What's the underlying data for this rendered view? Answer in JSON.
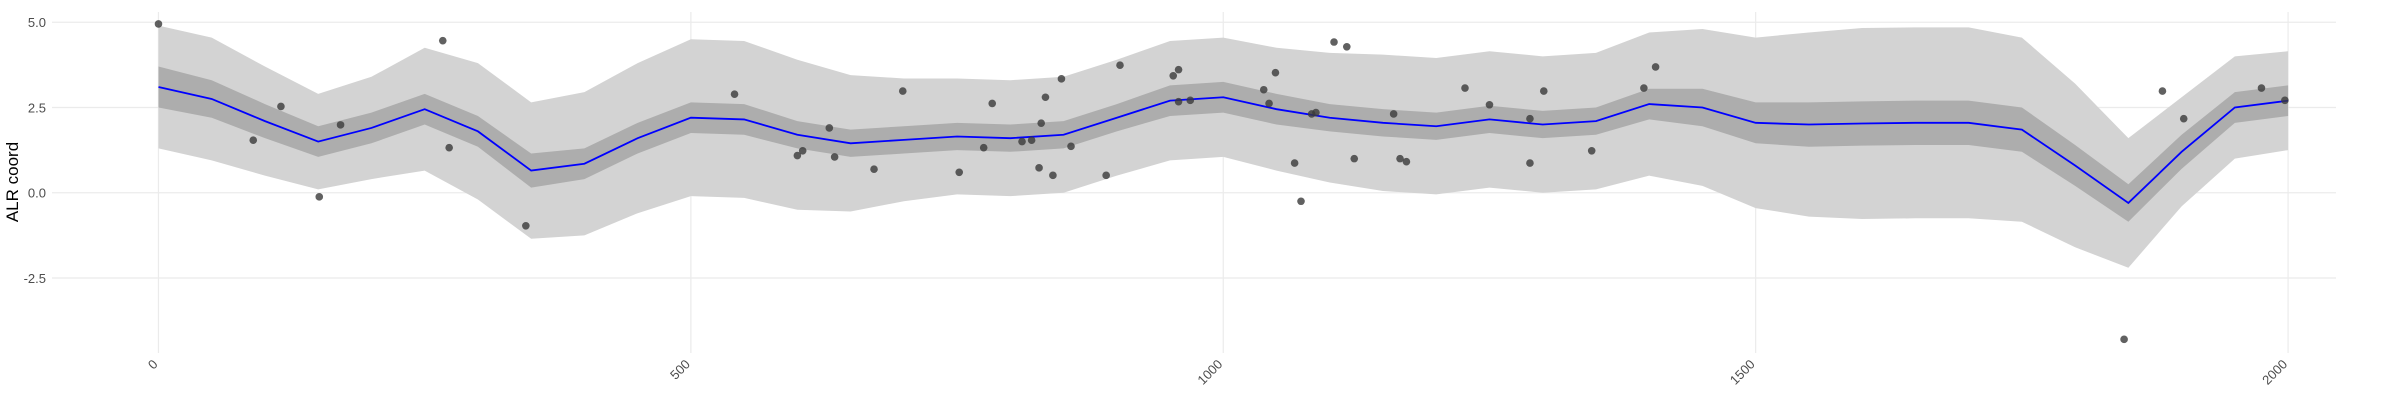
{
  "chart_data": {
    "type": "scatter",
    "y_label": "ALR coord",
    "xlim": [
      -100,
      2045
    ],
    "ylim": [
      -4.7,
      5.3
    ],
    "xticks": [
      0,
      500,
      1000,
      1500,
      2000
    ],
    "yticks": [
      -2.5,
      {
        "value": 0,
        "label": "0.0"
      },
      2.5,
      {
        "value": 5,
        "label": "5.0"
      }
    ],
    "grid": true,
    "point_color": "#3a3a3a",
    "x": [
      0,
      89,
      115,
      151,
      171,
      267,
      273,
      345,
      541,
      600,
      605,
      630,
      635,
      672,
      699,
      752,
      775,
      783,
      811,
      820,
      827,
      829,
      833,
      840,
      848,
      857,
      890,
      903,
      953,
      958,
      958,
      969,
      1038,
      1043,
      1049,
      1067,
      1073,
      1083,
      1087,
      1104,
      1116,
      1123,
      1160,
      1166,
      1172,
      1227,
      1250,
      1288,
      1288,
      1301,
      1346,
      1395,
      1406,
      1846,
      1882,
      1902,
      1975,
      1997
    ],
    "values": [
      4.95,
      1.54,
      2.53,
      -0.12,
      1.99,
      4.46,
      1.32,
      -0.97,
      2.89,
      1.09,
      1.23,
      1.9,
      1.05,
      0.69,
      2.98,
      0.6,
      1.32,
      2.62,
      1.5,
      1.54,
      0.73,
      2.04,
      2.8,
      0.51,
      3.34,
      1.36,
      0.51,
      3.74,
      3.43,
      3.61,
      2.67,
      2.71,
      3.02,
      2.62,
      3.52,
      0.87,
      -0.25,
      2.31,
      2.35,
      4.42,
      4.28,
      1.0,
      2.31,
      1.0,
      0.91,
      3.07,
      2.58,
      2.17,
      0.87,
      2.98,
      1.23,
      3.07,
      3.69,
      -4.3,
      2.98,
      2.17,
      3.07,
      2.71
    ],
    "fit": {
      "color": "#0000ff",
      "inner_color": "#adadad",
      "outer_color": "#d3d3d3",
      "x": [
        0,
        50,
        100,
        150,
        200,
        250,
        300,
        350,
        400,
        450,
        500,
        550,
        600,
        650,
        700,
        750,
        800,
        850,
        900,
        950,
        1000,
        1050,
        1100,
        1150,
        1200,
        1250,
        1300,
        1350,
        1400,
        1450,
        1500,
        1550,
        1600,
        1650,
        1700,
        1750,
        1800,
        1850,
        1900,
        1950,
        2000
      ],
      "values": [
        3.1,
        2.75,
        2.1,
        1.5,
        1.9,
        2.45,
        1.8,
        0.65,
        0.85,
        1.6,
        2.2,
        2.15,
        1.7,
        1.45,
        1.55,
        1.65,
        1.6,
        1.7,
        2.2,
        2.7,
        2.8,
        2.45,
        2.2,
        2.05,
        1.95,
        2.15,
        2.0,
        2.1,
        2.6,
        2.5,
        2.05,
        2.0,
        2.03,
        2.05,
        2.05,
        1.85,
        0.8,
        -0.3,
        1.2,
        2.5,
        2.7
      ],
      "inner_lower": [
        2.5,
        2.2,
        1.6,
        1.05,
        1.45,
        2.0,
        1.35,
        0.15,
        0.4,
        1.15,
        1.75,
        1.7,
        1.3,
        1.05,
        1.15,
        1.25,
        1.2,
        1.3,
        1.8,
        2.25,
        2.35,
        2.0,
        1.8,
        1.65,
        1.55,
        1.75,
        1.6,
        1.7,
        2.15,
        1.95,
        1.45,
        1.35,
        1.38,
        1.4,
        1.4,
        1.2,
        0.2,
        -0.85,
        0.7,
        2.05,
        2.25
      ],
      "inner_upper": [
        3.7,
        3.3,
        2.6,
        1.95,
        2.35,
        2.9,
        2.25,
        1.15,
        1.3,
        2.05,
        2.65,
        2.6,
        2.1,
        1.85,
        1.95,
        2.05,
        2.0,
        2.1,
        2.6,
        3.15,
        3.25,
        2.9,
        2.6,
        2.45,
        2.35,
        2.55,
        2.4,
        2.5,
        3.05,
        3.05,
        2.65,
        2.65,
        2.68,
        2.7,
        2.7,
        2.5,
        1.4,
        0.25,
        1.7,
        2.95,
        3.15
      ],
      "outer_lower": [
        1.3,
        0.95,
        0.5,
        0.1,
        0.4,
        0.65,
        -0.2,
        -1.35,
        -1.25,
        -0.6,
        -0.1,
        -0.15,
        -0.5,
        -0.55,
        -0.25,
        -0.05,
        -0.1,
        0.0,
        0.5,
        0.95,
        1.05,
        0.65,
        0.3,
        0.05,
        -0.05,
        0.15,
        0.0,
        0.1,
        0.5,
        0.2,
        -0.45,
        -0.7,
        -0.77,
        -0.75,
        -0.75,
        -0.85,
        -1.6,
        -2.2,
        -0.4,
        1.0,
        1.25
      ],
      "outer_upper": [
        4.9,
        4.55,
        3.7,
        2.9,
        3.4,
        4.25,
        3.8,
        2.65,
        2.95,
        3.8,
        4.5,
        4.45,
        3.9,
        3.45,
        3.35,
        3.35,
        3.3,
        3.4,
        3.9,
        4.45,
        4.55,
        4.25,
        4.1,
        4.05,
        3.95,
        4.15,
        4.0,
        4.1,
        4.7,
        4.8,
        4.55,
        4.7,
        4.83,
        4.85,
        4.85,
        4.55,
        3.2,
        1.6,
        2.8,
        4.0,
        4.15
      ]
    }
  }
}
